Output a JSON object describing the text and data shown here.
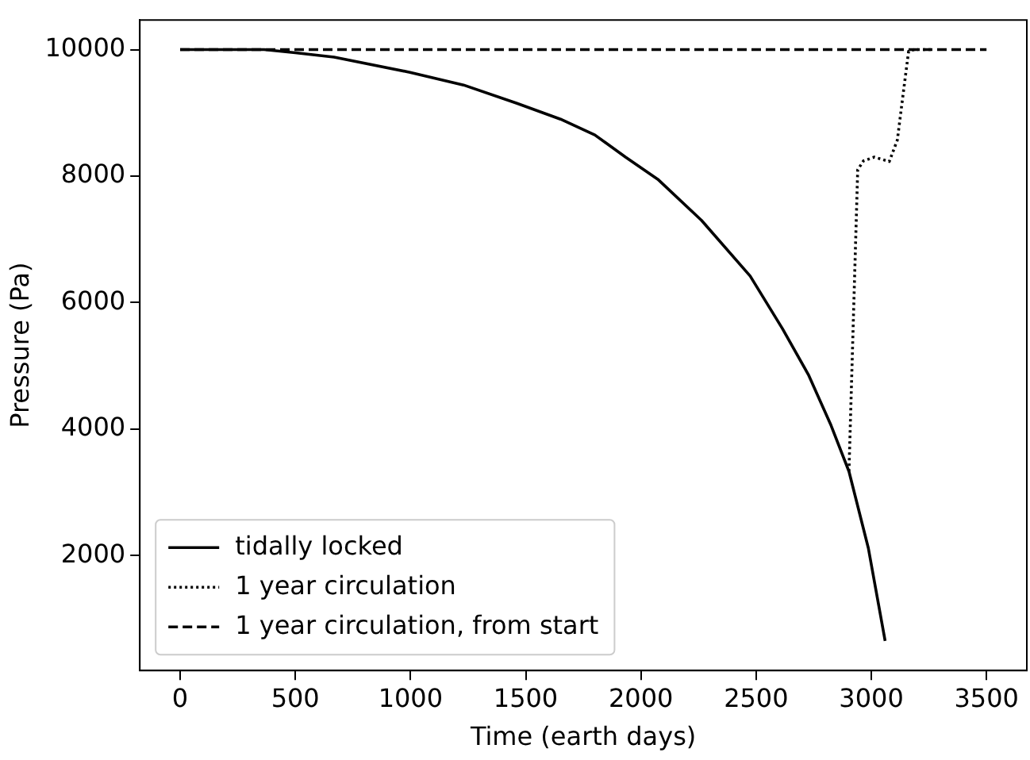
{
  "chart_data": {
    "type": "line",
    "xlabel": "Time (earth days)",
    "ylabel": "Pressure (Pa)",
    "xlim": [
      -175,
      3675
    ],
    "xticks": [
      0,
      500,
      1000,
      1500,
      2000,
      2500,
      3000,
      3500
    ],
    "ylim": [
      182,
      10468
    ],
    "yticks": [
      2000,
      4000,
      6000,
      8000,
      10000
    ],
    "grid": false,
    "legend": "bottom left",
    "marker": "none",
    "series": [
      {
        "name": "tidally locked",
        "color": "#000000",
        "line_style": "solid",
        "x": [
          0,
          365,
          500,
          668,
          998,
          1230,
          1462,
          1651,
          1800,
          1933,
          2073,
          2263,
          2474,
          2614,
          2727,
          2825,
          2903,
          2987,
          3060
        ],
        "values": [
          10000,
          10000,
          9950,
          9880,
          9640,
          9440,
          9150,
          8900,
          8650,
          8300,
          7950,
          7300,
          6420,
          5590,
          4860,
          4060,
          3330,
          2120,
          650
        ]
      },
      {
        "name": "1 year circulation",
        "color": "#000000",
        "line_style": "dotted",
        "x": [
          2903,
          2941,
          2966,
          3013,
          3078,
          3113,
          3141,
          3162,
          3187,
          3268
        ],
        "values": [
          3330,
          8100,
          8240,
          8300,
          8230,
          8570,
          9380,
          9975,
          10000,
          10000
        ]
      },
      {
        "name": "1 year circulation, from start",
        "color": "#000000",
        "line_style": "dashed",
        "x": [
          0,
          3500
        ],
        "values": [
          10000,
          10000
        ]
      }
    ]
  }
}
